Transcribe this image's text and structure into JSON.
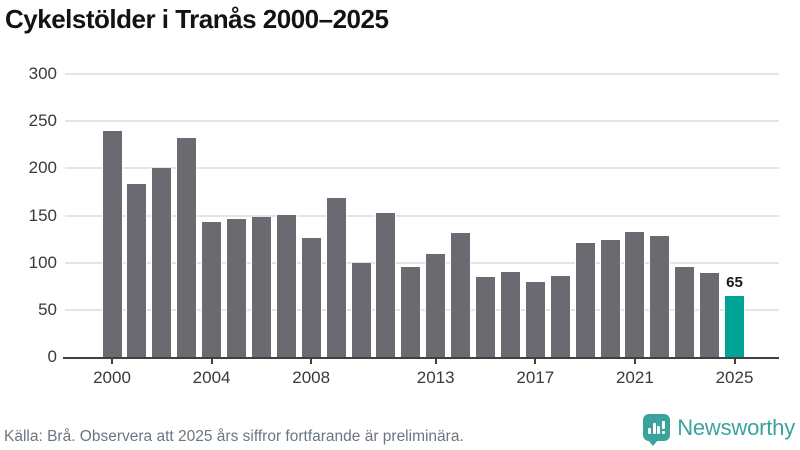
{
  "title": "Cykelstölder i Tranås 2000–2025",
  "footer": {
    "source_note": "Källa: Brå. Observera att 2025 års siffror fortfarande är preliminära."
  },
  "branding": {
    "logo_text": "Newsworthy",
    "logo_icon": "newsworthy-speech-bubble-bar-chart-icon"
  },
  "colors": {
    "bar": "#6b6a71",
    "highlight": "#00a396",
    "grid": "#e4e4e4",
    "axis": "#404040",
    "tick_text": "#3a3a3d",
    "title_text": "#131313",
    "footer_text": "#6b7680",
    "brand": "#3ba39d"
  },
  "chart_data": {
    "type": "bar",
    "title": "Cykelstölder i Tranås 2000–2025",
    "xlabel": "",
    "ylabel": "",
    "x": [
      2000,
      2001,
      2002,
      2003,
      2004,
      2005,
      2006,
      2007,
      2008,
      2009,
      2010,
      2011,
      2012,
      2013,
      2014,
      2015,
      2016,
      2017,
      2018,
      2019,
      2020,
      2021,
      2022,
      2023,
      2024,
      2025
    ],
    "values": [
      240,
      183,
      200,
      232,
      143,
      146,
      148,
      150,
      126,
      169,
      100,
      153,
      95,
      109,
      131,
      85,
      90,
      80,
      86,
      121,
      124,
      132,
      128,
      95,
      89,
      65
    ],
    "highlight_index": 25,
    "bar_label": {
      "index": 25,
      "text": "65"
    },
    "x_tick_years": [
      2000,
      2004,
      2008,
      2013,
      2017,
      2021,
      2025
    ],
    "y_ticks": [
      0,
      50,
      100,
      150,
      200,
      250,
      300
    ],
    "ylim": [
      0,
      300
    ],
    "grid": true,
    "legend": false
  }
}
